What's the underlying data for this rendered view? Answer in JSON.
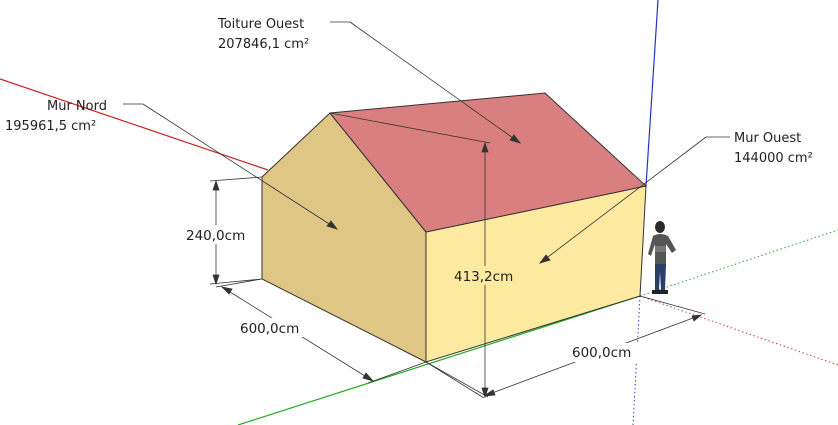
{
  "labels": {
    "roof_west": {
      "name": "Toiture Ouest",
      "area": "207846,1 cm²"
    },
    "wall_north": {
      "name": "Mur Nord",
      "area": "195961,5 cm²"
    },
    "wall_west": {
      "name": "Mur Ouest",
      "area": "144000 cm²"
    }
  },
  "dimensions": {
    "wall_height": "240,0cm",
    "ridge_height": "413,2cm",
    "length": "600,0cm",
    "width": "600,0cm"
  },
  "colors": {
    "roof": "#d97f7f",
    "wall_north": "#dfc685",
    "wall_west": "#fde9a0",
    "axis_red": "#cc2222",
    "axis_green": "#22aa22",
    "axis_blue": "#2233cc"
  }
}
